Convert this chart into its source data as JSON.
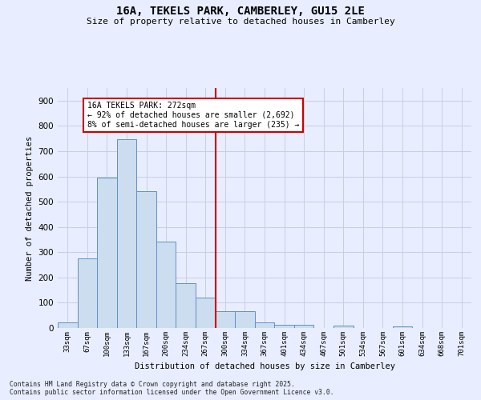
{
  "title_line1": "16A, TEKELS PARK, CAMBERLEY, GU15 2LE",
  "title_line2": "Size of property relative to detached houses in Camberley",
  "xlabel": "Distribution of detached houses by size in Camberley",
  "ylabel": "Number of detached properties",
  "categories": [
    "33sqm",
    "67sqm",
    "100sqm",
    "133sqm",
    "167sqm",
    "200sqm",
    "234sqm",
    "267sqm",
    "300sqm",
    "334sqm",
    "367sqm",
    "401sqm",
    "434sqm",
    "467sqm",
    "501sqm",
    "534sqm",
    "567sqm",
    "601sqm",
    "634sqm",
    "668sqm",
    "701sqm"
  ],
  "values": [
    22,
    275,
    595,
    748,
    540,
    343,
    178,
    120,
    65,
    65,
    22,
    12,
    12,
    0,
    10,
    0,
    0,
    5,
    0,
    0,
    0
  ],
  "bar_color": "#ccddf0",
  "bar_edge_color": "#6090c8",
  "vline_x": 7.5,
  "annotation_title": "16A TEKELS PARK: 272sqm",
  "annotation_line2": "← 92% of detached houses are smaller (2,692)",
  "annotation_line3": "8% of semi-detached houses are larger (235) →",
  "annotation_box_color": "#ffffff",
  "annotation_box_edge": "#cc0000",
  "vline_color": "#cc0000",
  "background_color": "#e8eeff",
  "grid_color": "#c8d0e0",
  "ylim": [
    0,
    950
  ],
  "yticks": [
    0,
    100,
    200,
    300,
    400,
    500,
    600,
    700,
    800,
    900
  ],
  "footer_line1": "Contains HM Land Registry data © Crown copyright and database right 2025.",
  "footer_line2": "Contains public sector information licensed under the Open Government Licence v3.0."
}
